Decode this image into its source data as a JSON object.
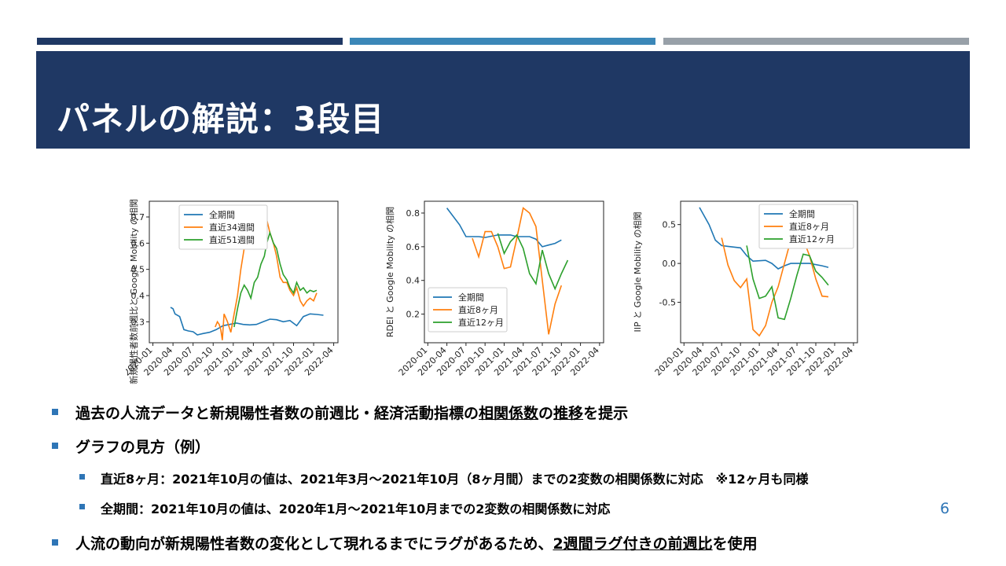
{
  "colors": {
    "navy": "#1f3864",
    "blue": "#3b87b8",
    "gray": "#98a0a8",
    "bullet": "#2e75b6",
    "series_all": "#1f77b4",
    "series_a": "#ff7f0e",
    "series_b": "#2ca02c"
  },
  "slide": {
    "title": "パネルの解説：3段目",
    "page_number": "6"
  },
  "bullets": {
    "b1_pre": "過去の人流データと新規陽性者数の前週比・経済活動指標の",
    "b1_ul1": "相関係数",
    "b1_mid": "の",
    "b1_ul2": "推移",
    "b1_post": "を提示",
    "b2": "グラフの見方（例）",
    "b2a": "直近8ヶ月：2021年10月の値は、2021年3月～2021年10月（8ヶ月間）までの2変数の相関係数に対応　※12ヶ月も同様",
    "b2b": "全期間：2021年10月の値は、2020年1月～2021年10月までの2変数の相関係数に対応",
    "b3_pre": "人流の動向が新規陽性者数の変化として現れるまでにラグがあるため、",
    "b3_ul": "2週間ラグ付きの前週比",
    "b3_post": "を使用"
  },
  "chart_data": [
    {
      "type": "line",
      "ylabel": "新規陽性者数前週比と Google Mobility の相関",
      "x_ticks": [
        "2020-01",
        "2020-04",
        "2020-07",
        "2020-10",
        "2021-01",
        "2021-04",
        "2021-07",
        "2021-10",
        "2022-01",
        "2022-04"
      ],
      "y_ticks": [
        0.3,
        0.4,
        0.5,
        0.6,
        0.7
      ],
      "ylim": [
        0.22,
        0.76
      ],
      "legend_position": "upper-left",
      "series": [
        {
          "name": "全期間",
          "color": "#1f77b4",
          "points": [
            [
              "2020-03-20",
              0.355
            ],
            [
              "2020-04-01",
              0.35
            ],
            [
              "2020-04-10",
              0.33
            ],
            [
              "2020-05-01",
              0.32
            ],
            [
              "2020-05-20",
              0.27
            ],
            [
              "2020-06-10",
              0.265
            ],
            [
              "2020-07-01",
              0.262
            ],
            [
              "2020-07-20",
              0.25
            ],
            [
              "2020-08-15",
              0.255
            ],
            [
              "2020-09-15",
              0.26
            ],
            [
              "2020-10-15",
              0.27
            ],
            [
              "2020-11-15",
              0.285
            ],
            [
              "2020-12-15",
              0.29
            ],
            [
              "2021-01-15",
              0.295
            ],
            [
              "2021-02-15",
              0.29
            ],
            [
              "2021-03-15",
              0.288
            ],
            [
              "2021-04-15",
              0.29
            ],
            [
              "2021-05-15",
              0.3
            ],
            [
              "2021-06-15",
              0.31
            ],
            [
              "2021-07-15",
              0.308
            ],
            [
              "2021-08-15",
              0.3
            ],
            [
              "2021-09-15",
              0.305
            ],
            [
              "2021-10-15",
              0.285
            ],
            [
              "2021-11-15",
              0.32
            ],
            [
              "2021-12-15",
              0.33
            ],
            [
              "2022-01-15",
              0.328
            ],
            [
              "2022-02-15",
              0.325
            ]
          ]
        },
        {
          "name": "直近34週間",
          "color": "#ff7f0e",
          "points": [
            [
              "2020-10-10",
              0.28
            ],
            [
              "2020-10-20",
              0.3
            ],
            [
              "2020-10-28",
              0.29
            ],
            [
              "2020-11-05",
              0.27
            ],
            [
              "2020-11-12",
              0.23
            ],
            [
              "2020-11-20",
              0.33
            ],
            [
              "2020-12-05",
              0.3
            ],
            [
              "2020-12-20",
              0.26
            ],
            [
              "2021-01-05",
              0.33
            ],
            [
              "2021-01-20",
              0.4
            ],
            [
              "2021-02-05",
              0.5
            ],
            [
              "2021-02-20",
              0.58
            ],
            [
              "2021-03-05",
              0.6
            ],
            [
              "2021-03-20",
              0.65
            ],
            [
              "2021-04-05",
              0.65
            ],
            [
              "2021-04-20",
              0.7
            ],
            [
              "2021-05-01",
              0.73
            ],
            [
              "2021-05-15",
              0.7
            ],
            [
              "2021-06-01",
              0.69
            ],
            [
              "2021-06-15",
              0.64
            ],
            [
              "2021-07-01",
              0.6
            ],
            [
              "2021-07-15",
              0.55
            ],
            [
              "2021-08-01",
              0.47
            ],
            [
              "2021-08-15",
              0.45
            ],
            [
              "2021-09-01",
              0.45
            ],
            [
              "2021-09-15",
              0.42
            ],
            [
              "2021-10-01",
              0.4
            ],
            [
              "2021-10-15",
              0.43
            ],
            [
              "2021-11-01",
              0.38
            ],
            [
              "2021-11-15",
              0.36
            ],
            [
              "2021-12-01",
              0.38
            ],
            [
              "2021-12-15",
              0.39
            ],
            [
              "2022-01-01",
              0.38
            ],
            [
              "2022-01-15",
              0.41
            ]
          ]
        },
        {
          "name": "直近51週間",
          "color": "#2ca02c",
          "points": [
            [
              "2021-01-05",
              0.28
            ],
            [
              "2021-01-20",
              0.35
            ],
            [
              "2021-02-05",
              0.41
            ],
            [
              "2021-02-20",
              0.44
            ],
            [
              "2021-03-05",
              0.42
            ],
            [
              "2021-03-20",
              0.39
            ],
            [
              "2021-04-05",
              0.45
            ],
            [
              "2021-04-20",
              0.47
            ],
            [
              "2021-05-05",
              0.52
            ],
            [
              "2021-05-20",
              0.55
            ],
            [
              "2021-06-01",
              0.6
            ],
            [
              "2021-06-15",
              0.64
            ],
            [
              "2021-07-01",
              0.6
            ],
            [
              "2021-07-15",
              0.58
            ],
            [
              "2021-08-01",
              0.52
            ],
            [
              "2021-08-15",
              0.48
            ],
            [
              "2021-09-01",
              0.46
            ],
            [
              "2021-09-15",
              0.43
            ],
            [
              "2021-10-01",
              0.41
            ],
            [
              "2021-10-15",
              0.45
            ],
            [
              "2021-11-01",
              0.42
            ],
            [
              "2021-11-15",
              0.43
            ],
            [
              "2021-12-01",
              0.41
            ],
            [
              "2021-12-15",
              0.42
            ],
            [
              "2022-01-01",
              0.415
            ],
            [
              "2022-01-15",
              0.42
            ]
          ]
        }
      ]
    },
    {
      "type": "line",
      "ylabel": "RDEI と Google Mobility の相関",
      "x_ticks": [
        "2020-01",
        "2020-04",
        "2020-07",
        "2020-10",
        "2021-01",
        "2021-04",
        "2021-07",
        "2021-10",
        "2022-01",
        "2022-04"
      ],
      "y_ticks": [
        0.2,
        0.4,
        0.6,
        0.8
      ],
      "ylim": [
        0.03,
        0.87
      ],
      "legend_position": "lower-left",
      "series": [
        {
          "name": "全期間",
          "color": "#1f77b4",
          "points": [
            [
              "2020-04-01",
              0.83
            ],
            [
              "2020-06-01",
              0.73
            ],
            [
              "2020-07-01",
              0.66
            ],
            [
              "2020-09-01",
              0.66
            ],
            [
              "2020-10-01",
              0.655
            ],
            [
              "2020-12-01",
              0.67
            ],
            [
              "2021-02-01",
              0.67
            ],
            [
              "2021-03-01",
              0.66
            ],
            [
              "2021-05-01",
              0.66
            ],
            [
              "2021-06-01",
              0.645
            ],
            [
              "2021-07-01",
              0.6
            ],
            [
              "2021-08-01",
              0.61
            ],
            [
              "2021-09-01",
              0.62
            ],
            [
              "2021-10-01",
              0.64
            ]
          ]
        },
        {
          "name": "直近8ヶ月",
          "color": "#ff7f0e",
          "points": [
            [
              "2020-08-01",
              0.65
            ],
            [
              "2020-09-01",
              0.54
            ],
            [
              "2020-10-01",
              0.69
            ],
            [
              "2020-11-01",
              0.69
            ],
            [
              "2020-12-01",
              0.6
            ],
            [
              "2021-01-01",
              0.47
            ],
            [
              "2021-02-01",
              0.48
            ],
            [
              "2021-03-01",
              0.65
            ],
            [
              "2021-04-01",
              0.83
            ],
            [
              "2021-05-01",
              0.8
            ],
            [
              "2021-06-01",
              0.72
            ],
            [
              "2021-07-01",
              0.4
            ],
            [
              "2021-08-01",
              0.08
            ],
            [
              "2021-09-01",
              0.26
            ],
            [
              "2021-10-01",
              0.37
            ]
          ]
        },
        {
          "name": "直近12ヶ月",
          "color": "#2ca02c",
          "points": [
            [
              "2020-12-01",
              0.68
            ],
            [
              "2021-01-01",
              0.56
            ],
            [
              "2021-02-01",
              0.63
            ],
            [
              "2021-03-01",
              0.67
            ],
            [
              "2021-04-01",
              0.59
            ],
            [
              "2021-05-01",
              0.44
            ],
            [
              "2021-06-01",
              0.38
            ],
            [
              "2021-07-01",
              0.58
            ],
            [
              "2021-08-01",
              0.44
            ],
            [
              "2021-09-01",
              0.35
            ],
            [
              "2021-10-01",
              0.44
            ],
            [
              "2021-11-01",
              0.52
            ]
          ]
        }
      ]
    },
    {
      "type": "line",
      "ylabel": "IIP と Google Mobility の相関",
      "x_ticks": [
        "2020-01",
        "2020-04",
        "2020-07",
        "2020-10",
        "2021-01",
        "2021-04",
        "2021-07",
        "2021-10",
        "2022-01",
        "2022-04"
      ],
      "y_ticks": [
        -0.5,
        0.0,
        0.5
      ],
      "ylim": [
        -1.02,
        0.8
      ],
      "legend_position": "upper-right",
      "series": [
        {
          "name": "全期間",
          "color": "#1f77b4",
          "points": [
            [
              "2020-03-15",
              0.72
            ],
            [
              "2020-05-01",
              0.5
            ],
            [
              "2020-06-01",
              0.3
            ],
            [
              "2020-07-01",
              0.23
            ],
            [
              "2020-08-01",
              0.22
            ],
            [
              "2020-10-01",
              0.2
            ],
            [
              "2020-11-01",
              0.1
            ],
            [
              "2020-12-01",
              0.03
            ],
            [
              "2021-02-01",
              0.04
            ],
            [
              "2021-03-01",
              0.0
            ],
            [
              "2021-04-01",
              -0.07
            ],
            [
              "2021-05-01",
              -0.03
            ],
            [
              "2021-06-01",
              0.0
            ],
            [
              "2021-09-01",
              0.0
            ],
            [
              "2021-11-01",
              -0.03
            ],
            [
              "2021-12-01",
              -0.05
            ]
          ]
        },
        {
          "name": "直近8ヶ月",
          "color": "#ff7f0e",
          "points": [
            [
              "2020-07-01",
              0.33
            ],
            [
              "2020-08-01",
              -0.02
            ],
            [
              "2020-09-01",
              -0.22
            ],
            [
              "2020-10-01",
              -0.31
            ],
            [
              "2020-11-01",
              -0.2
            ],
            [
              "2020-12-01",
              -0.85
            ],
            [
              "2021-01-01",
              -0.93
            ],
            [
              "2021-02-01",
              -0.8
            ],
            [
              "2021-03-01",
              -0.5
            ],
            [
              "2021-04-01",
              -0.3
            ],
            [
              "2021-05-01",
              0.0
            ],
            [
              "2021-06-01",
              0.3
            ],
            [
              "2021-07-15",
              0.42
            ],
            [
              "2021-09-01",
              0.1
            ],
            [
              "2021-10-01",
              -0.2
            ],
            [
              "2021-11-01",
              -0.42
            ],
            [
              "2021-12-01",
              -0.43
            ]
          ]
        },
        {
          "name": "直近12ヶ月",
          "color": "#2ca02c",
          "points": [
            [
              "2020-11-01",
              0.23
            ],
            [
              "2020-12-01",
              -0.2
            ],
            [
              "2021-01-01",
              -0.45
            ],
            [
              "2021-02-01",
              -0.42
            ],
            [
              "2021-03-01",
              -0.3
            ],
            [
              "2021-04-01",
              -0.7
            ],
            [
              "2021-05-01",
              -0.72
            ],
            [
              "2021-06-01",
              -0.45
            ],
            [
              "2021-07-01",
              -0.15
            ],
            [
              "2021-08-01",
              0.12
            ],
            [
              "2021-09-01",
              0.1
            ],
            [
              "2021-10-01",
              -0.1
            ],
            [
              "2021-11-01",
              -0.18
            ],
            [
              "2021-12-01",
              -0.28
            ]
          ]
        }
      ]
    }
  ]
}
